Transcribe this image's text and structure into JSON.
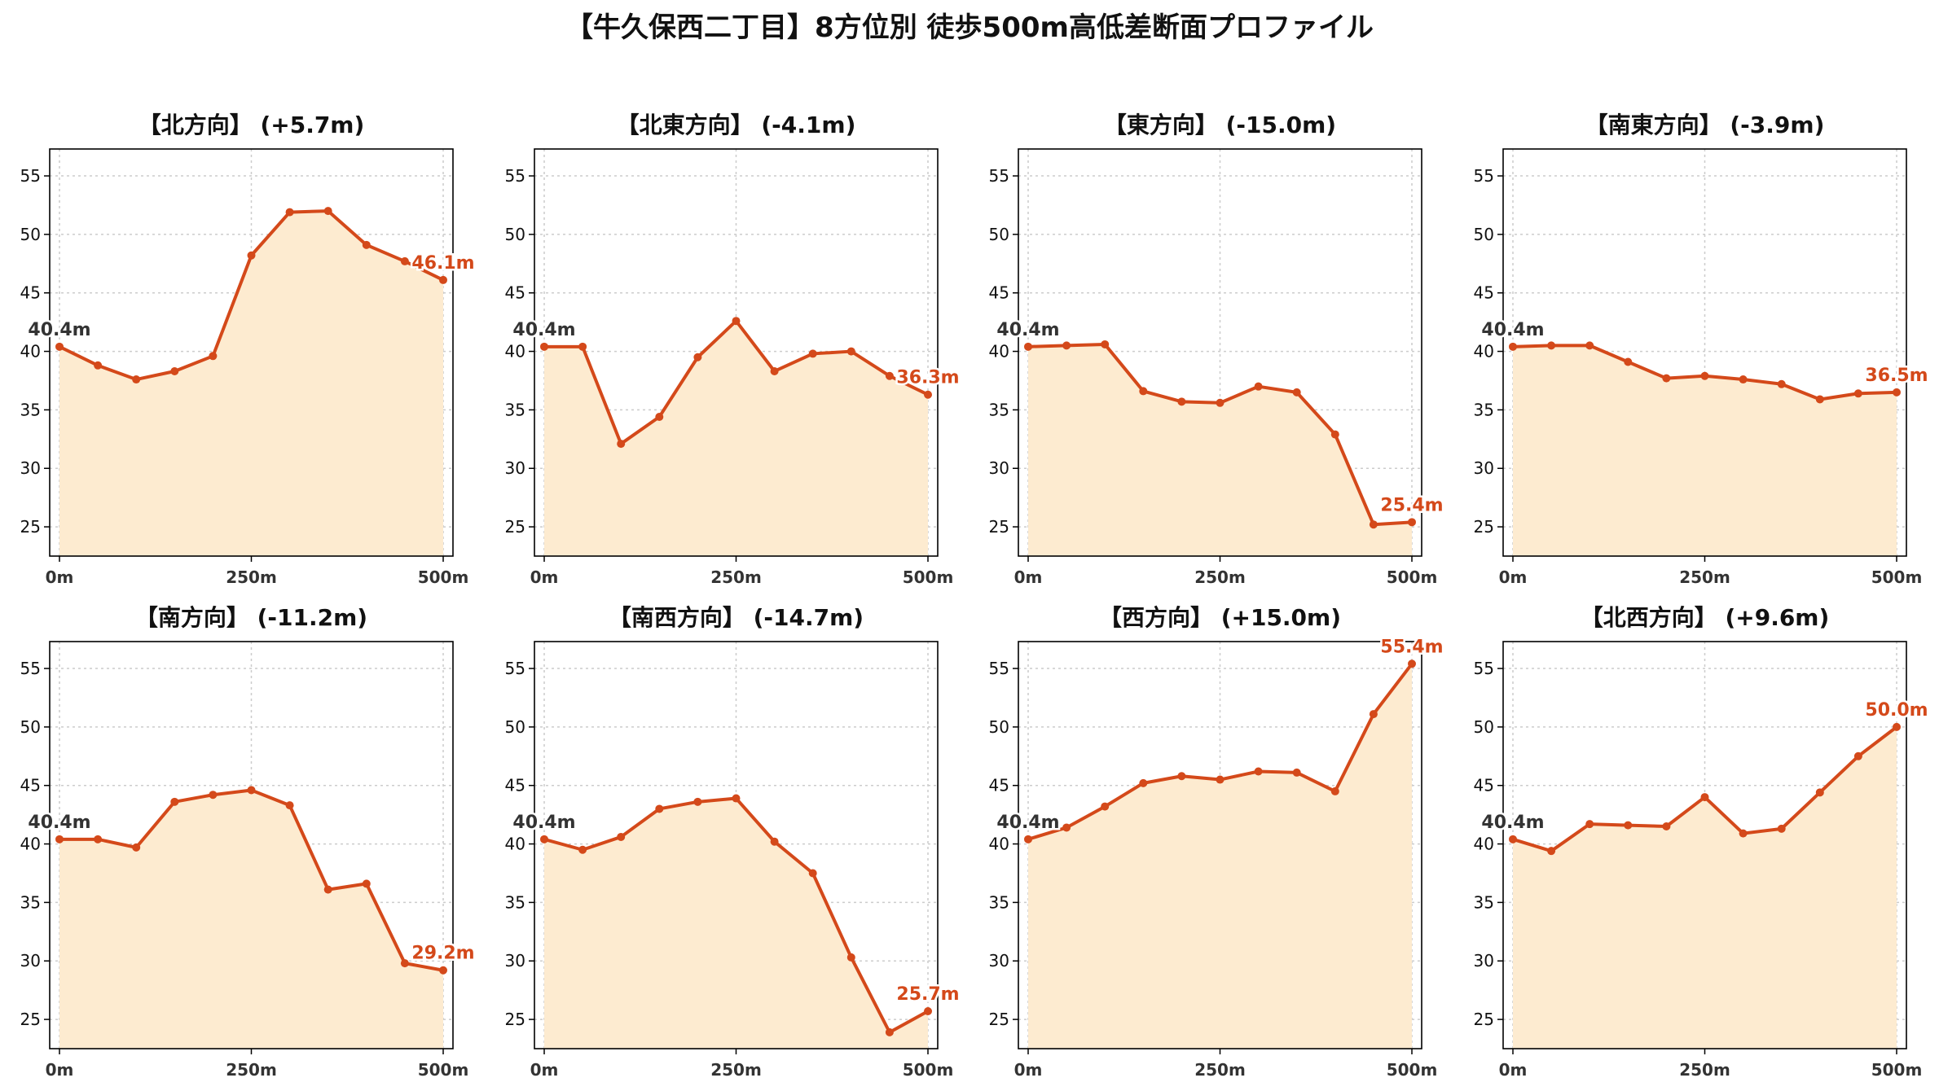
{
  "figure": {
    "title": "【牛久保西二丁目】8方位別 徒歩500m高低差断面プロファイル"
  },
  "colors": {
    "line": "#d4491a",
    "fill": "#fdebd0",
    "grid": "#cccccc",
    "axis": "#000000"
  },
  "chart_data": [
    {
      "type": "area",
      "title": "【北方向】 (+5.7m)",
      "x": [
        0,
        50,
        100,
        150,
        200,
        250,
        300,
        350,
        400,
        450,
        500
      ],
      "y": [
        40.4,
        38.8,
        37.6,
        38.3,
        39.6,
        48.2,
        51.9,
        52.0,
        49.1,
        47.7,
        46.1
      ],
      "xlim": [
        0,
        500
      ],
      "ylim": [
        22.5,
        57.3
      ],
      "xticks": [
        0,
        250,
        500
      ],
      "xtick_labels": [
        "0m",
        "250m",
        "500m"
      ],
      "yticks": [
        25,
        30,
        35,
        40,
        45,
        50,
        55
      ],
      "start_label": "40.4m",
      "end_label": "46.1m",
      "grid": true
    },
    {
      "type": "area",
      "title": "【北東方向】 (-4.1m)",
      "x": [
        0,
        50,
        100,
        150,
        200,
        250,
        300,
        350,
        400,
        450,
        500
      ],
      "y": [
        40.4,
        40.4,
        32.1,
        34.4,
        39.5,
        42.6,
        38.3,
        39.8,
        40.0,
        37.9,
        36.3
      ],
      "xlim": [
        0,
        500
      ],
      "ylim": [
        22.5,
        57.3
      ],
      "xticks": [
        0,
        250,
        500
      ],
      "xtick_labels": [
        "0m",
        "250m",
        "500m"
      ],
      "yticks": [
        25,
        30,
        35,
        40,
        45,
        50,
        55
      ],
      "start_label": "40.4m",
      "end_label": "36.3m",
      "grid": true
    },
    {
      "type": "area",
      "title": "【東方向】 (-15.0m)",
      "x": [
        0,
        50,
        100,
        150,
        200,
        250,
        300,
        350,
        400,
        450,
        500
      ],
      "y": [
        40.4,
        40.5,
        40.6,
        36.6,
        35.7,
        35.6,
        37.0,
        36.5,
        32.9,
        25.2,
        25.4
      ],
      "xlim": [
        0,
        500
      ],
      "ylim": [
        22.5,
        57.3
      ],
      "xticks": [
        0,
        250,
        500
      ],
      "xtick_labels": [
        "0m",
        "250m",
        "500m"
      ],
      "yticks": [
        25,
        30,
        35,
        40,
        45,
        50,
        55
      ],
      "start_label": "40.4m",
      "end_label": "25.4m",
      "grid": true
    },
    {
      "type": "area",
      "title": "【南東方向】 (-3.9m)",
      "x": [
        0,
        50,
        100,
        150,
        200,
        250,
        300,
        350,
        400,
        450,
        500
      ],
      "y": [
        40.4,
        40.5,
        40.5,
        39.1,
        37.7,
        37.9,
        37.6,
        37.2,
        35.9,
        36.4,
        36.5
      ],
      "xlim": [
        0,
        500
      ],
      "ylim": [
        22.5,
        57.3
      ],
      "xticks": [
        0,
        250,
        500
      ],
      "xtick_labels": [
        "0m",
        "250m",
        "500m"
      ],
      "yticks": [
        25,
        30,
        35,
        40,
        45,
        50,
        55
      ],
      "start_label": "40.4m",
      "end_label": "36.5m",
      "grid": true
    },
    {
      "type": "area",
      "title": "【南方向】 (-11.2m)",
      "x": [
        0,
        50,
        100,
        150,
        200,
        250,
        300,
        350,
        400,
        450,
        500
      ],
      "y": [
        40.4,
        40.4,
        39.7,
        43.6,
        44.2,
        44.6,
        43.3,
        36.1,
        36.6,
        29.8,
        29.2
      ],
      "xlim": [
        0,
        500
      ],
      "ylim": [
        22.5,
        57.3
      ],
      "xticks": [
        0,
        250,
        500
      ],
      "xtick_labels": [
        "0m",
        "250m",
        "500m"
      ],
      "yticks": [
        25,
        30,
        35,
        40,
        45,
        50,
        55
      ],
      "start_label": "40.4m",
      "end_label": "29.2m",
      "grid": true
    },
    {
      "type": "area",
      "title": "【南西方向】 (-14.7m)",
      "x": [
        0,
        50,
        100,
        150,
        200,
        250,
        300,
        350,
        400,
        450,
        500
      ],
      "y": [
        40.4,
        39.5,
        40.6,
        43.0,
        43.6,
        43.9,
        40.2,
        37.5,
        30.3,
        23.9,
        25.7
      ],
      "xlim": [
        0,
        500
      ],
      "ylim": [
        22.5,
        57.3
      ],
      "xticks": [
        0,
        250,
        500
      ],
      "xtick_labels": [
        "0m",
        "250m",
        "500m"
      ],
      "yticks": [
        25,
        30,
        35,
        40,
        45,
        50,
        55
      ],
      "start_label": "40.4m",
      "end_label": "25.7m",
      "grid": true
    },
    {
      "type": "area",
      "title": "【西方向】 (+15.0m)",
      "x": [
        0,
        50,
        100,
        150,
        200,
        250,
        300,
        350,
        400,
        450,
        500
      ],
      "y": [
        40.4,
        41.4,
        43.2,
        45.2,
        45.8,
        45.5,
        46.2,
        46.1,
        44.5,
        51.1,
        55.4
      ],
      "xlim": [
        0,
        500
      ],
      "ylim": [
        22.5,
        57.3
      ],
      "xticks": [
        0,
        250,
        500
      ],
      "xtick_labels": [
        "0m",
        "250m",
        "500m"
      ],
      "yticks": [
        25,
        30,
        35,
        40,
        45,
        50,
        55
      ],
      "start_label": "40.4m",
      "end_label": "55.4m",
      "grid": true
    },
    {
      "type": "area",
      "title": "【北西方向】 (+9.6m)",
      "x": [
        0,
        50,
        100,
        150,
        200,
        250,
        300,
        350,
        400,
        450,
        500
      ],
      "y": [
        40.4,
        39.4,
        41.7,
        41.6,
        41.5,
        44.0,
        40.9,
        41.3,
        44.4,
        47.5,
        50.0
      ],
      "xlim": [
        0,
        500
      ],
      "ylim": [
        22.5,
        57.3
      ],
      "xticks": [
        0,
        250,
        500
      ],
      "xtick_labels": [
        "0m",
        "250m",
        "500m"
      ],
      "yticks": [
        25,
        30,
        35,
        40,
        45,
        50,
        55
      ],
      "start_label": "40.4m",
      "end_label": "50.0m",
      "grid": true
    }
  ]
}
